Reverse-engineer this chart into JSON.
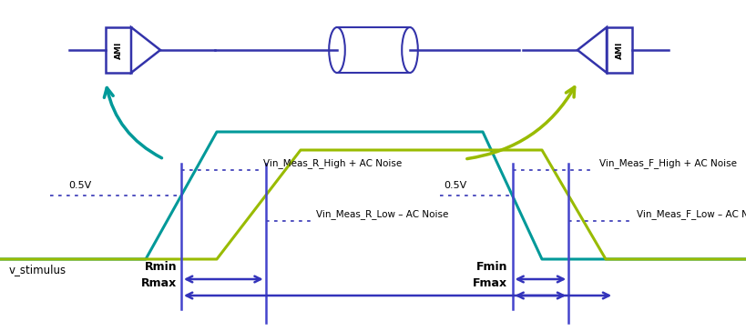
{
  "bg_color": "#ffffff",
  "ami_color": "#3333aa",
  "teal_color": "#009999",
  "green_color": "#99bb00",
  "dot_blue": "#4444bb",
  "arrow_teal": "#009999",
  "arrow_green": "#99bb00",
  "vline_color": "#4444cc",
  "labels": {
    "v_stimulus": "v_stimulus",
    "Rmin": "Rmin",
    "Rmax": "Rmax",
    "Fmin": "Fmin",
    "Fmax": "Fmax",
    "05V_left": "0.5V",
    "05V_right": "0.5V",
    "Vin_R_High": "Vin_Meas_R_High + AC Noise",
    "Vin_R_Low": "Vin_Meas_R_Low – AC Noise",
    "Vin_F_High": "Vin_Meas_F_High + AC Noise",
    "Vin_F_Low": "Vin_Meas_F_Low – AC Noise"
  }
}
